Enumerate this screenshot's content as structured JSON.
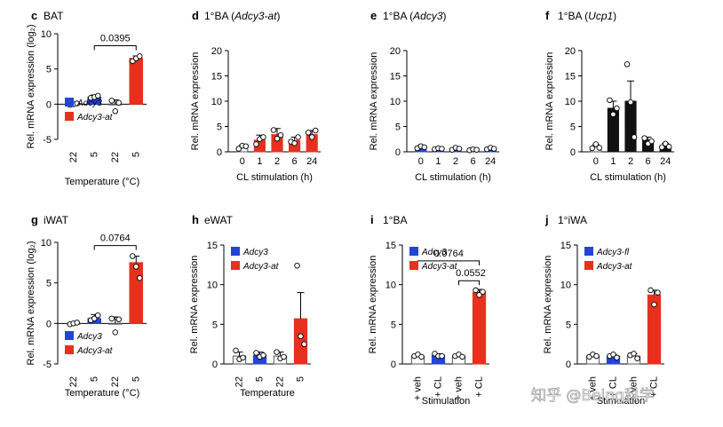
{
  "colors": {
    "adcy3": "#2444d6",
    "adcy3_at": "#e8301f",
    "black": "#111111",
    "gray": "#c8c8c8"
  },
  "watermark": "知乎 @Being科学",
  "chart_data": [
    {
      "id": "c",
      "letter": "c",
      "title": "BAT",
      "type": "bar",
      "ylabel": "Rel. mRNA expression (log₂)",
      "xlabel": "Temperature (°C)",
      "ylim": [
        -5,
        10
      ],
      "yticks": [
        "-5",
        "0",
        "5",
        "10"
      ],
      "xrot": true,
      "categories": [
        "22",
        "5",
        "22",
        "5"
      ],
      "values": [
        0.0,
        1.0,
        0.0,
        6.5
      ],
      "errors": [
        0.05,
        0.3,
        0.6,
        0.35
      ],
      "bar_colors": [
        "adcy3",
        "adcy3",
        "adcy3_at",
        "adcy3_at"
      ],
      "bar_filled": [
        false,
        true,
        false,
        true
      ],
      "points": [
        [
          -0.1,
          0.0,
          0.1
        ],
        [
          0.9,
          1.0,
          1.2
        ],
        [
          0.5,
          -1.0,
          0.2
        ],
        [
          6.1,
          6.5,
          6.8
        ]
      ],
      "legend": {
        "items": [
          {
            "label": "Adcy3",
            "color": "adcy3"
          },
          {
            "label": "Adcy3-at",
            "color": "adcy3_at"
          }
        ],
        "position": "bottom-left"
      },
      "brackets": [
        {
          "from": 1,
          "to": 3,
          "y": 8.3,
          "label": "0.0395"
        }
      ]
    },
    {
      "id": "d",
      "letter": "d",
      "title": "1°BA (",
      "title_italic": "Adcy3-at",
      "title_end": ")",
      "type": "bar",
      "ylabel": "Rel. mRNA expression",
      "xlabel": "CL stimulation (h)",
      "ylim": [
        0,
        20
      ],
      "yticks": [
        "0",
        "5",
        "10",
        "15",
        "20"
      ],
      "xrot": false,
      "categories": [
        "0",
        "1",
        "2",
        "6",
        "24"
      ],
      "values": [
        1.0,
        2.3,
        3.4,
        2.2,
        3.4
      ],
      "errors": [
        0.3,
        1.0,
        1.2,
        0.7,
        0.8
      ],
      "bar_colors": [
        "gray",
        "adcy3_at",
        "adcy3_at",
        "adcy3_at",
        "adcy3_at"
      ],
      "bar_filled": [
        false,
        true,
        true,
        true,
        true
      ],
      "points": [
        [
          0.6,
          1.2,
          1.1
        ],
        [
          1.5,
          2.5,
          2.9
        ],
        [
          4.3,
          2.6,
          3.3
        ],
        [
          2.0,
          1.7,
          2.9
        ],
        [
          3.8,
          2.9,
          4.2
        ]
      ]
    },
    {
      "id": "e",
      "letter": "e",
      "title": "1°BA (",
      "title_italic": "Adcy3",
      "title_end": ")",
      "type": "bar",
      "ylabel": "Rel. mRNA expression",
      "xlabel": "CL stimulation (h)",
      "ylim": [
        0,
        20
      ],
      "yticks": [
        "0",
        "5",
        "10",
        "15",
        "20"
      ],
      "xrot": false,
      "categories": [
        "0",
        "1",
        "2",
        "6",
        "24"
      ],
      "values": [
        0.9,
        0.6,
        0.6,
        0.4,
        0.6
      ],
      "errors": [
        0.3,
        0.2,
        0.2,
        0.1,
        0.2
      ],
      "bar_colors": [
        "adcy3",
        "adcy3",
        "adcy3",
        "adcy3",
        "adcy3"
      ],
      "bar_filled": [
        true,
        true,
        true,
        true,
        true
      ],
      "points": [
        [
          0.7,
          1.1,
          0.9
        ],
        [
          0.5,
          0.7,
          0.6
        ],
        [
          0.4,
          0.8,
          0.6
        ],
        [
          0.3,
          0.5,
          0.4
        ],
        [
          0.5,
          0.8,
          0.6
        ]
      ]
    },
    {
      "id": "f",
      "letter": "f",
      "title": "1°BA (",
      "title_italic": "Ucp1",
      "title_end": ")",
      "type": "bar",
      "ylabel": "Rel. mRNA expression",
      "xlabel": "CL stimulation (h)",
      "ylim": [
        0,
        20
      ],
      "yticks": [
        "0",
        "5",
        "10",
        "15",
        "20"
      ],
      "xrot": false,
      "categories": [
        "0",
        "1",
        "2",
        "6",
        "24"
      ],
      "values": [
        1.0,
        8.6,
        10.0,
        2.3,
        1.2
      ],
      "errors": [
        0.4,
        1.4,
        4.0,
        0.6,
        0.5
      ],
      "bar_colors": [
        "black",
        "black",
        "black",
        "black",
        "black"
      ],
      "bar_filled": [
        false,
        true,
        true,
        true,
        true
      ],
      "points": [
        [
          0.7,
          1.5,
          0.8
        ],
        [
          10.2,
          7.4,
          8.6
        ],
        [
          17.3,
          9.8,
          2.9
        ],
        [
          2.7,
          1.6,
          2.1
        ],
        [
          0.9,
          1.6,
          1.0
        ]
      ]
    },
    {
      "id": "g",
      "letter": "g",
      "title": "iWAT",
      "type": "bar",
      "ylabel": "Rel. mRNA expression (log₂)",
      "xlabel": "Temperature (°C)",
      "ylim": [
        -5,
        10
      ],
      "yticks": [
        "-5",
        "0",
        "5",
        "10"
      ],
      "xrot": true,
      "categories": [
        "22",
        "5",
        "22",
        "5"
      ],
      "values": [
        0.0,
        0.6,
        0.0,
        7.5
      ],
      "errors": [
        0.05,
        0.5,
        0.8,
        0.8
      ],
      "bar_colors": [
        "adcy3",
        "adcy3",
        "adcy3_at",
        "adcy3_at"
      ],
      "bar_filled": [
        false,
        true,
        false,
        true
      ],
      "points": [
        [
          -0.1,
          0.0,
          0.1
        ],
        [
          0.4,
          0.6,
          1.0
        ],
        [
          0.6,
          -1.1,
          0.5
        ],
        [
          8.3,
          7.0,
          5.6
        ]
      ],
      "legend": {
        "items": [
          {
            "label": "Adcy3",
            "color": "adcy3"
          },
          {
            "label": "Adcy3-at",
            "color": "adcy3_at"
          }
        ],
        "position": "bottom-left"
      },
      "brackets": [
        {
          "from": 1,
          "to": 3,
          "y": 9.6,
          "label": "0.0764"
        }
      ]
    },
    {
      "id": "h",
      "letter": "h",
      "title": "eWAT",
      "type": "bar",
      "ylabel": "Rel. mRNA expression",
      "xlabel": "Temperature",
      "ylim": [
        0,
        15
      ],
      "yticks": [
        "0",
        "5",
        "10",
        "15"
      ],
      "xrot": true,
      "categories": [
        "22",
        "5",
        "22",
        "5"
      ],
      "values": [
        1.0,
        1.1,
        1.0,
        5.7
      ],
      "errors": [
        0.5,
        0.4,
        0.5,
        3.3
      ],
      "bar_colors": [
        "adcy3",
        "adcy3",
        "adcy3_at",
        "adcy3_at"
      ],
      "bar_filled": [
        false,
        true,
        false,
        true
      ],
      "points": [
        [
          1.7,
          0.6,
          0.8
        ],
        [
          1.4,
          0.9,
          1.1
        ],
        [
          1.5,
          0.7,
          0.9
        ],
        [
          12.4,
          3.5,
          2.5
        ]
      ],
      "legend": {
        "items": [
          {
            "label": "Adcy3",
            "color": "adcy3"
          },
          {
            "label": "Adcy3-at",
            "color": "adcy3_at"
          }
        ],
        "position": "top-left"
      }
    },
    {
      "id": "i",
      "letter": "i",
      "title": "1°BA",
      "type": "bar",
      "ylabel": "Rel. mRNA expression",
      "xlabel": "Stimulation",
      "ylim": [
        0,
        15
      ],
      "yticks": [
        "0",
        "5",
        "10",
        "15"
      ],
      "xrot": true,
      "categories": [
        "+ veh",
        "+ CL",
        "+ veh",
        "+ CL"
      ],
      "values": [
        1.0,
        1.1,
        1.0,
        9.0
      ],
      "errors": [
        0.2,
        0.2,
        0.2,
        0.4
      ],
      "bar_colors": [
        "adcy3",
        "adcy3",
        "adcy3_at",
        "adcy3_at"
      ],
      "bar_filled": [
        false,
        true,
        false,
        true
      ],
      "points": [
        [
          1.0,
          1.2,
          0.9
        ],
        [
          1.3,
          1.0,
          1.0
        ],
        [
          1.0,
          1.2,
          0.9
        ],
        [
          9.3,
          8.7,
          9.1
        ]
      ],
      "legend": {
        "items": [
          {
            "label": "Adcy3",
            "color": "adcy3"
          },
          {
            "label": "Adcy3-at",
            "color": "adcy3_at"
          }
        ],
        "position": "top-left"
      },
      "brackets": [
        {
          "from": 0,
          "to": 3,
          "y": 13.0,
          "label": "0.0764"
        },
        {
          "from": 2,
          "to": 3,
          "y": 10.5,
          "label": "0.0552"
        }
      ]
    },
    {
      "id": "j",
      "letter": "j",
      "title": "1°iWA",
      "type": "bar",
      "ylabel": "Rel. mRNA expression",
      "xlabel": "Stimulation",
      "ylim": [
        0,
        15
      ],
      "yticks": [
        "0",
        "5",
        "10",
        "15"
      ],
      "xrot": true,
      "categories": [
        "+ veh",
        "+ CL",
        "+ veh",
        "+ CL"
      ],
      "values": [
        1.0,
        1.0,
        1.0,
        8.7
      ],
      "errors": [
        0.2,
        0.2,
        0.3,
        0.6
      ],
      "bar_colors": [
        "adcy3",
        "adcy3",
        "adcy3_at",
        "adcy3_at"
      ],
      "bar_filled": [
        false,
        true,
        false,
        true
      ],
      "points": [
        [
          0.9,
          1.2,
          1.0
        ],
        [
          1.0,
          1.2,
          0.8
        ],
        [
          1.1,
          1.3,
          0.7
        ],
        [
          9.3,
          7.5,
          9.0
        ]
      ],
      "legend": {
        "items": [
          {
            "label": "Adcy3-fl",
            "color": "adcy3"
          },
          {
            "label": "Adcy3-at",
            "color": "adcy3_at"
          }
        ],
        "position": "top-left"
      }
    }
  ]
}
